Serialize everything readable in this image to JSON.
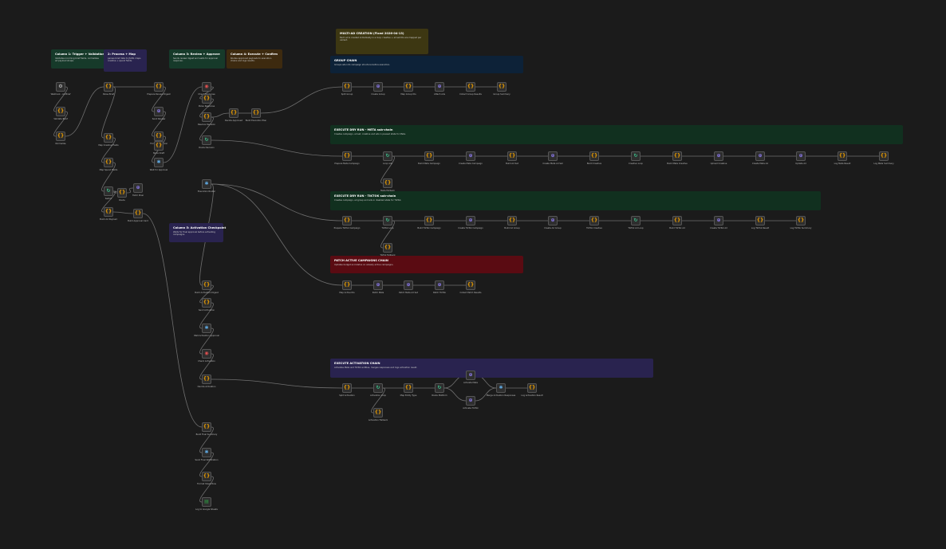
{
  "colors": {
    "canvas": "#1b1b1b",
    "edge": "#6f6f6f",
    "node_bg": "#2e2e2e",
    "node_border": "#555555",
    "code": "#f0a000",
    "http": "#8f7cf0",
    "trigger": "#d0d0d0",
    "loop": "#3ec38d",
    "wait": "#e05050",
    "merge": "#5fa8e0",
    "sheet": "#2ea043"
  },
  "notes": [
    {
      "id": "col1",
      "title": "Column 1: Trigger + Validation",
      "body": "Validates incoming brief fields, normalizes ad payload shape.",
      "color": "#163a2a"
    },
    {
      "id": "col2",
      "title": "2: Process + Map",
      "body": "parses brief data to JSON, maps creative + spend fields.",
      "color": "#29234f"
    },
    {
      "id": "col3",
      "title": "Column 3: Review + Approve",
      "body": "Sends review digest and waits for approval response.",
      "color": "#163a2a"
    },
    {
      "id": "col4",
      "title": "Column 4: Execute + Confirm",
      "body": "Routes approved payloads to execution chains and logs results.",
      "color": "#3d2a0f"
    },
    {
      "id": "multi",
      "title": "MULTI-AD CREATION (Fixed 2026-04-13)",
      "body": "Each ad is created individually in a loop; creative + ad set IDs are mapped per variant.",
      "color": "#3d3712"
    },
    {
      "id": "group",
      "title": "GROUP CHAIN",
      "body": "Groups ads into campaign structure before execution.",
      "color": "#0d2238"
    },
    {
      "id": "meta",
      "title": "EXECUTE DRY RUN - META sub-chain",
      "body": "Creates campaign, ad set, creative and ads in paused state for Meta.",
      "color": "#11301f"
    },
    {
      "id": "tiktok",
      "title": "EXECUTE DRY RUN - TIKTOK sub-chain",
      "body": "Creates campaign, ad group and ads in disabled state for TikTok.",
      "color": "#11301f"
    },
    {
      "id": "patch",
      "title": "PATCH ACTIVE CAMPAIGNS CHAIN",
      "body": "Updates budget and status on already active campaigns.",
      "color": "#5a0b12"
    },
    {
      "id": "col5",
      "title": "Column 5: Activation Checkpoint",
      "body": "Waits for final approval before activating campaigns.",
      "color": "#29234f"
    },
    {
      "id": "activation",
      "title": "EXECUTE ACTIVATION CHAIN",
      "body": "Activates Meta and TikTok entities, merges responses and logs activation result.",
      "color": "#29234f"
    }
  ],
  "nodes": [
    {
      "id": "n1",
      "type": "trigger",
      "label": "Webhook - Ad Brief"
    },
    {
      "id": "n2",
      "type": "code",
      "label": "Validate Brief"
    },
    {
      "id": "n3",
      "type": "code",
      "label": "Normalize"
    },
    {
      "id": "n4",
      "type": "code",
      "label": "Parse Brief"
    },
    {
      "id": "n5",
      "type": "code",
      "label": "Map Creative Fields"
    },
    {
      "id": "n6",
      "type": "code",
      "label": "Map Spend Fields"
    },
    {
      "id": "n7",
      "type": "loop",
      "label": "Switch"
    },
    {
      "id": "n8",
      "type": "code",
      "label": "Route"
    },
    {
      "id": "n9",
      "type": "code",
      "label": "Build Ad Payload"
    },
    {
      "id": "n10",
      "type": "http",
      "label": "Fetch Pixel"
    },
    {
      "id": "n11",
      "type": "code",
      "label": "Build Approval Card"
    },
    {
      "id": "n12",
      "type": "code",
      "label": "Prepare Review Digest"
    },
    {
      "id": "n13",
      "type": "http",
      "label": "Send Review"
    },
    {
      "id": "n14",
      "type": "code",
      "label": "Format Approval"
    },
    {
      "id": "n15",
      "type": "code",
      "label": "Store Draft"
    },
    {
      "id": "n16",
      "type": "merge",
      "label": "Wait for Approval"
    },
    {
      "id": "n17",
      "type": "wait",
      "label": "Check Response"
    },
    {
      "id": "n18",
      "type": "code",
      "label": "Parse Response"
    },
    {
      "id": "n19",
      "type": "code",
      "label": "Resolve Decision"
    },
    {
      "id": "n20",
      "type": "loop",
      "label": "Route Decision"
    },
    {
      "id": "n21",
      "type": "code",
      "label": "Decide Approved"
    },
    {
      "id": "n22",
      "type": "code",
      "label": "Build Execution Plan"
    },
    {
      "id": "n23",
      "type": "merge",
      "label": "Execution Router"
    },
    {
      "id": "g1",
      "type": "code",
      "label": "Split Group"
    },
    {
      "id": "g2",
      "type": "http",
      "label": "Create Group"
    },
    {
      "id": "g3",
      "type": "code",
      "label": "Map Group IDs"
    },
    {
      "id": "g4",
      "type": "http",
      "label": "Attach Ads"
    },
    {
      "id": "g5",
      "type": "code",
      "label": "Collect Group Results"
    },
    {
      "id": "g6",
      "type": "code",
      "label": "Group Summary"
    },
    {
      "id": "m1",
      "type": "code",
      "label": "Prepare Meta Campaign"
    },
    {
      "id": "m2",
      "type": "loop",
      "label": "Loop Ads"
    },
    {
      "id": "m3",
      "type": "code",
      "label": "Build Meta Campaign"
    },
    {
      "id": "m4",
      "type": "http",
      "label": "Create Meta Campaign"
    },
    {
      "id": "m5",
      "type": "code",
      "label": "Build Ad Set"
    },
    {
      "id": "m6",
      "type": "http",
      "label": "Create Meta Ad Set"
    },
    {
      "id": "m7",
      "type": "code",
      "label": "Build Creative"
    },
    {
      "id": "m8",
      "type": "loop",
      "label": "Creative Loop"
    },
    {
      "id": "m9",
      "type": "code",
      "label": "Build Meta Creative"
    },
    {
      "id": "m10",
      "type": "http",
      "label": "Upload Creative"
    },
    {
      "id": "m11",
      "type": "http",
      "label": "Create Meta Ad"
    },
    {
      "id": "m12",
      "type": "http",
      "label": "Update Ad"
    },
    {
      "id": "m13",
      "type": "code",
      "label": "Log Meta Result"
    },
    {
      "id": "m14",
      "type": "code",
      "label": "Log Meta Summary"
    },
    {
      "id": "m15",
      "type": "code",
      "label": "Meta Fallback"
    },
    {
      "id": "t1",
      "type": "code",
      "label": "Prepare TikTok Campaign"
    },
    {
      "id": "t2",
      "type": "loop",
      "label": "TikTok Loop"
    },
    {
      "id": "t3",
      "type": "code",
      "label": "Build TikTok Campaign"
    },
    {
      "id": "t4",
      "type": "http",
      "label": "Create TikTok Campaign"
    },
    {
      "id": "t5",
      "type": "code",
      "label": "Build Ad Group"
    },
    {
      "id": "t6",
      "type": "http",
      "label": "Create Ad Group"
    },
    {
      "id": "t7",
      "type": "code",
      "label": "TikTok Creative"
    },
    {
      "id": "t8",
      "type": "loop",
      "label": "TikTok Ad Loop"
    },
    {
      "id": "t9",
      "type": "code",
      "label": "Build TikTok Ad"
    },
    {
      "id": "t10",
      "type": "http",
      "label": "Create TikTok Ad"
    },
    {
      "id": "t11",
      "type": "code",
      "label": "Log TikTok Result"
    },
    {
      "id": "t12",
      "type": "code",
      "label": "Log TikTok Summary"
    },
    {
      "id": "t13",
      "type": "code",
      "label": "TikTok Fallback"
    },
    {
      "id": "p1",
      "type": "code",
      "label": "Map Active IDs"
    },
    {
      "id": "p2",
      "type": "http",
      "label": "Patch Meta"
    },
    {
      "id": "p3",
      "type": "http",
      "label": "Patch Meta Ad Set"
    },
    {
      "id": "p4",
      "type": "http",
      "label": "Patch TikTok"
    },
    {
      "id": "p5",
      "type": "code",
      "label": "Collect Patch Results"
    },
    {
      "id": "c1",
      "type": "code",
      "label": "Build Activation Digest"
    },
    {
      "id": "c2",
      "type": "code",
      "label": "Send Activation"
    },
    {
      "id": "c3",
      "type": "merge",
      "label": "Wait Activation Approval"
    },
    {
      "id": "c4",
      "type": "wait",
      "label": "Check Activation"
    },
    {
      "id": "c5",
      "type": "code",
      "label": "Decide Activation"
    },
    {
      "id": "a1",
      "type": "code",
      "label": "Split Activation"
    },
    {
      "id": "a2",
      "type": "loop",
      "label": "Activation Loop"
    },
    {
      "id": "a3",
      "type": "code",
      "label": "Map Entity Type"
    },
    {
      "id": "a4",
      "type": "loop",
      "label": "Route Platform"
    },
    {
      "id": "a5",
      "type": "http",
      "label": "Activate Meta"
    },
    {
      "id": "a6",
      "type": "http",
      "label": "Activate TikTok"
    },
    {
      "id": "a7",
      "type": "merge",
      "label": "Merge Activation Responses"
    },
    {
      "id": "a8",
      "type": "code",
      "label": "Log Activation Result"
    },
    {
      "id": "a9",
      "type": "code",
      "label": "Activation Fallback"
    },
    {
      "id": "z1",
      "type": "code",
      "label": "Build Final Summary"
    },
    {
      "id": "z2",
      "type": "merge",
      "label": "Send Final Notification"
    },
    {
      "id": "z3",
      "type": "code",
      "label": "Format Sheet Row"
    },
    {
      "id": "z4",
      "type": "sheet",
      "label": "Log to Google Sheets"
    }
  ],
  "icons": {
    "code": "{}",
    "http": "⊕",
    "trigger": "⚙",
    "loop": "↻",
    "wait": "◉",
    "merge": "✱",
    "sheet": "▤"
  }
}
